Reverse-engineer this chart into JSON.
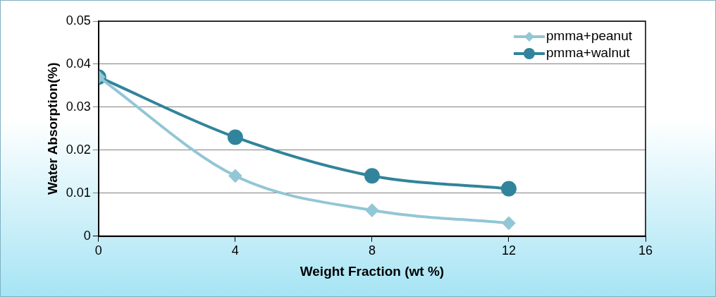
{
  "chart_data": {
    "type": "line",
    "xlabel": "Weight Fraction (wt %)",
    "ylabel": "Water Absorption(%)",
    "x": [
      0,
      4,
      8,
      12
    ],
    "series": [
      {
        "name": "pmma+peanut",
        "color": "#93c6d6",
        "marker": "diamond",
        "values": [
          0.037,
          0.014,
          0.006,
          0.003
        ]
      },
      {
        "name": "pmma+walnut",
        "color": "#31849b",
        "marker": "circle",
        "values": [
          0.037,
          0.023,
          0.014,
          0.011
        ]
      }
    ],
    "xlim": [
      0,
      16
    ],
    "xticks": [
      0,
      4,
      8,
      12,
      16
    ],
    "ylim": [
      0,
      0.05
    ],
    "yticks": [
      0,
      0.01,
      0.02,
      0.03,
      0.04,
      0.05
    ],
    "grid": "y",
    "legend": "top right",
    "line_style": "solid"
  }
}
